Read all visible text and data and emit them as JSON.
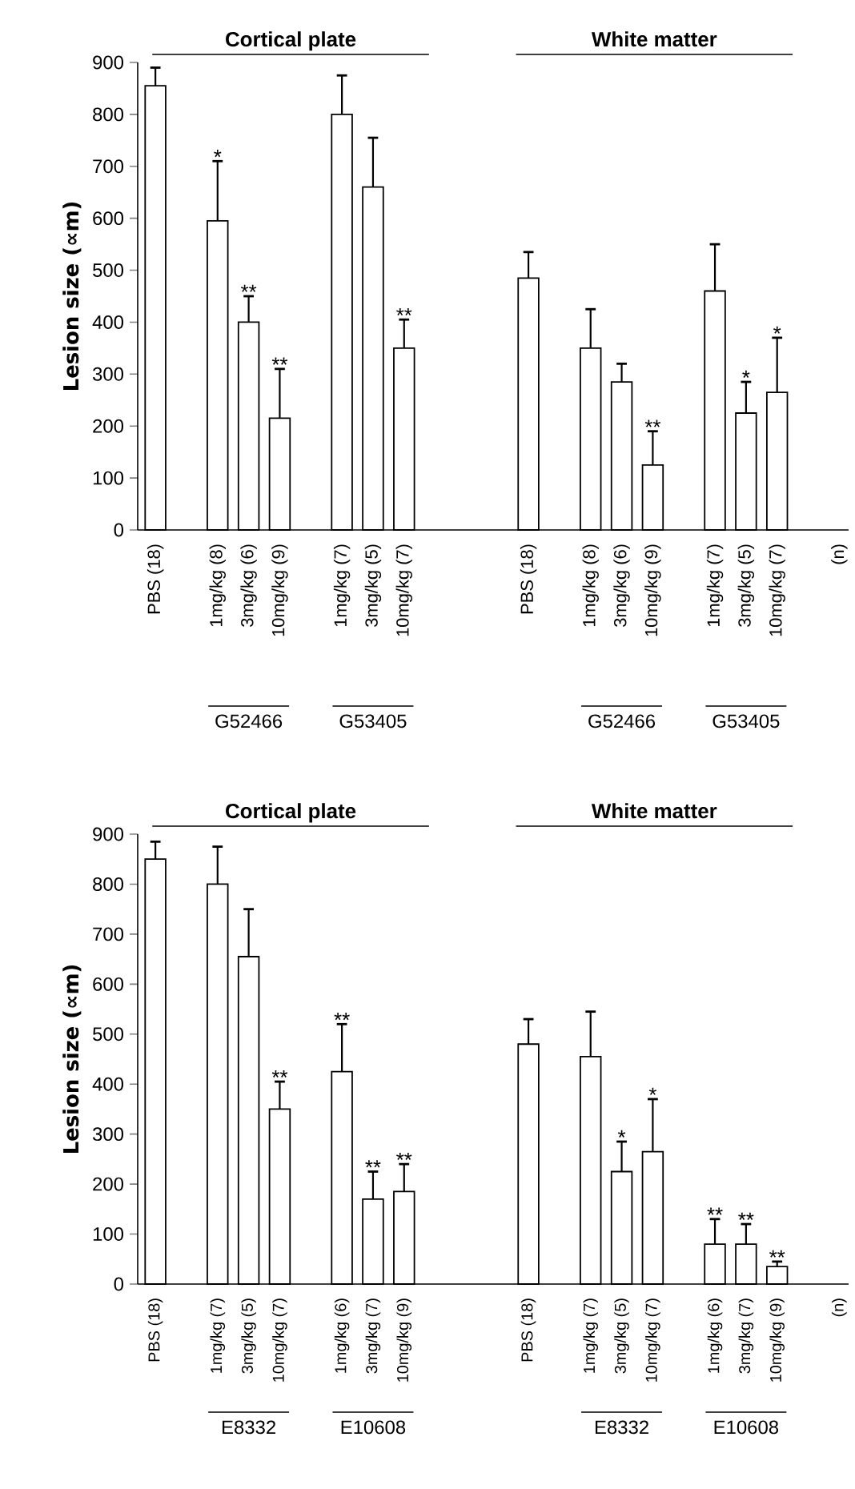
{
  "chart_data": [
    {
      "type": "bar",
      "ylabel": "Lesion size (∝m)",
      "color": "#ffffff",
      "ylim": [
        0,
        900
      ],
      "yticks": [
        0,
        100,
        200,
        300,
        400,
        500,
        600,
        700,
        800,
        900
      ],
      "categories": [
        "PBS (18)",
        null,
        "1mg/kg (8)",
        "3mg/kg (6)",
        "10mg/kg (9)",
        null,
        "1mg/kg (7)",
        "3mg/kg (5)",
        "10mg/kg (7)",
        null,
        null,
        null,
        "PBS (18)",
        null,
        "1mg/kg (8)",
        "3mg/kg (6)",
        "10mg/kg (9)",
        null,
        "1mg/kg (7)",
        "3mg/kg (5)",
        "10mg/kg (7)",
        null,
        "(n)"
      ],
      "values": [
        855,
        null,
        595,
        400,
        215,
        null,
        800,
        660,
        350,
        null,
        null,
        null,
        485,
        null,
        350,
        285,
        125,
        null,
        460,
        225,
        265,
        null,
        null
      ],
      "errors": [
        [
          855,
          890
        ],
        null,
        [
          595,
          710
        ],
        [
          400,
          450
        ],
        [
          215,
          310
        ],
        null,
        [
          800,
          875
        ],
        [
          660,
          755
        ],
        [
          350,
          405
        ],
        null,
        null,
        null,
        [
          485,
          535
        ],
        null,
        [
          350,
          425
        ],
        [
          285,
          320
        ],
        [
          125,
          190
        ],
        null,
        [
          460,
          550
        ],
        [
          225,
          285
        ],
        [
          265,
          370
        ],
        null,
        null
      ],
      "value_labels": [
        null,
        null,
        "*",
        "**",
        "**",
        null,
        null,
        null,
        "**",
        null,
        null,
        null,
        null,
        null,
        null,
        null,
        "**",
        null,
        null,
        "*",
        "*",
        null,
        null
      ],
      "annotations": [
        "Cortical plate",
        "White matter",
        "G52466",
        "G53405",
        "G52466",
        "G53405"
      ]
    },
    {
      "type": "bar",
      "ylabel": "Lesion size (∝m)",
      "color": "#ffffff",
      "ylim": [
        0,
        900
      ],
      "yticks": [
        0,
        100,
        200,
        300,
        400,
        500,
        600,
        700,
        800,
        900
      ],
      "categories": [
        "PBS (18)",
        null,
        "1mg/kg (7)",
        "3mg/kg (5)",
        "10mg/kg (7)",
        null,
        "1mg/kg (6)",
        "3mg/kg (7)",
        "10mg/kg (9)",
        null,
        null,
        null,
        "PBS (18)",
        null,
        "1mg/kg (7)",
        "3mg/kg (5)",
        "10mg/kg (7)",
        null,
        "1mg/kg (6)",
        "3mg/kg (7)",
        "10mg/kg (9)",
        null,
        "(n)"
      ],
      "values": [
        850,
        null,
        800,
        655,
        350,
        null,
        425,
        170,
        185,
        null,
        null,
        null,
        480,
        null,
        455,
        225,
        265,
        null,
        80,
        80,
        35,
        null,
        null
      ],
      "errors": [
        [
          850,
          885
        ],
        null,
        [
          800,
          875
        ],
        [
          655,
          750
        ],
        [
          350,
          405
        ],
        null,
        [
          425,
          520
        ],
        [
          170,
          225
        ],
        [
          185,
          240
        ],
        null,
        null,
        null,
        [
          480,
          530
        ],
        null,
        [
          455,
          545
        ],
        [
          225,
          285
        ],
        [
          265,
          370
        ],
        null,
        [
          80,
          130
        ],
        [
          80,
          120
        ],
        [
          35,
          45
        ],
        null,
        null
      ],
      "value_labels": [
        null,
        null,
        null,
        null,
        "**",
        null,
        "**",
        "**",
        "**",
        null,
        null,
        null,
        null,
        null,
        null,
        "*",
        "*",
        null,
        "**",
        "**",
        "**",
        null,
        null
      ],
      "annotations": [
        "Cortical plate",
        "White matter",
        "E8332",
        "E10608",
        "E8332",
        "E10608"
      ]
    }
  ]
}
